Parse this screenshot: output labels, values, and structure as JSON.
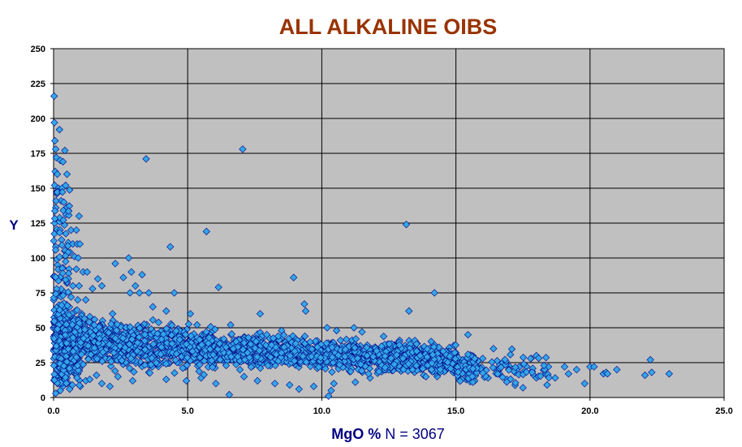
{
  "chart_data": {
    "type": "scatter",
    "title": "ALL ALKALINE  OIBS",
    "xlabel": "MgO %",
    "xlabel_suffix": " N = 3067",
    "ylabel": "Y",
    "xlim": [
      0,
      25
    ],
    "ylim": [
      0,
      250
    ],
    "xticks": [
      "0.0",
      "5.0",
      "10.0",
      "15.0",
      "20.0",
      "25.0"
    ],
    "yticks": [
      "0",
      "25",
      "50",
      "75",
      "100",
      "125",
      "150",
      "175",
      "200",
      "225",
      "250"
    ],
    "grid": true,
    "legend": "none",
    "colors": {
      "title": "#993300",
      "axis_label": "#000080",
      "plot_background": "#c0c0c0",
      "marker_fill": "#33a6e8",
      "marker_edge": "#000080"
    },
    "marker": "diamond",
    "points": [
      [
        0.02,
        216
      ],
      [
        0.03,
        197
      ],
      [
        0.05,
        184
      ],
      [
        0.08,
        178
      ],
      [
        0.22,
        192
      ],
      [
        0.42,
        177
      ],
      [
        0.1,
        172
      ],
      [
        0.25,
        170
      ],
      [
        0.35,
        169
      ],
      [
        0.06,
        162
      ],
      [
        0.14,
        160
      ],
      [
        0.5,
        160
      ],
      [
        0.04,
        152
      ],
      [
        0.18,
        150
      ],
      [
        0.32,
        150
      ],
      [
        0.45,
        152
      ],
      [
        0.12,
        146
      ],
      [
        0.28,
        141
      ],
      [
        0.38,
        140
      ],
      [
        0.08,
        136
      ],
      [
        0.55,
        134
      ],
      [
        0.95,
        130
      ],
      [
        0.04,
        125
      ],
      [
        0.22,
        126
      ],
      [
        0.15,
        120
      ],
      [
        0.65,
        120
      ],
      [
        0.85,
        120
      ],
      [
        0.3,
        113
      ],
      [
        0.55,
        111
      ],
      [
        0.72,
        110
      ],
      [
        0.88,
        110
      ],
      [
        0.98,
        110
      ],
      [
        0.08,
        108
      ],
      [
        0.42,
        105
      ],
      [
        0.62,
        104
      ],
      [
        0.78,
        101
      ],
      [
        0.92,
        100
      ],
      [
        0.15,
        95
      ],
      [
        0.35,
        93
      ],
      [
        0.58,
        92
      ],
      [
        0.85,
        92
      ],
      [
        1.1,
        90
      ],
      [
        1.25,
        90
      ],
      [
        1.65,
        85
      ],
      [
        0.25,
        85
      ],
      [
        0.5,
        82
      ],
      [
        0.72,
        80
      ],
      [
        0.95,
        80
      ],
      [
        1.45,
        78
      ],
      [
        1.8,
        80
      ],
      [
        0.12,
        75
      ],
      [
        0.38,
        74
      ],
      [
        0.65,
        72
      ],
      [
        0.9,
        70
      ],
      [
        1.2,
        70
      ],
      [
        0.2,
        66
      ],
      [
        0.48,
        64
      ],
      [
        0.82,
        62
      ],
      [
        1.05,
        60
      ],
      [
        1.35,
        58
      ],
      [
        0.3,
        56
      ],
      [
        0.6,
        55
      ],
      [
        0.85,
        54
      ],
      [
        1.15,
        52
      ],
      [
        1.5,
        50
      ],
      [
        3.45,
        171
      ],
      [
        7.05,
        178
      ],
      [
        5.7,
        119
      ],
      [
        4.35,
        108
      ],
      [
        2.8,
        100
      ],
      [
        2.3,
        96
      ],
      [
        3.3,
        88
      ],
      [
        2.9,
        90
      ],
      [
        2.6,
        86
      ],
      [
        3.05,
        80
      ],
      [
        3.55,
        75
      ],
      [
        3.2,
        75
      ],
      [
        2.85,
        75
      ],
      [
        4.5,
        75
      ],
      [
        6.15,
        79
      ],
      [
        8.95,
        86
      ],
      [
        9.35,
        67
      ],
      [
        9.4,
        62
      ],
      [
        13.15,
        124
      ],
      [
        13.25,
        62
      ],
      [
        14.2,
        75
      ],
      [
        2.2,
        60
      ],
      [
        3.7,
        65
      ],
      [
        4.2,
        62
      ],
      [
        5.1,
        60
      ],
      [
        5.35,
        52
      ],
      [
        6.6,
        52
      ],
      [
        7.7,
        60
      ],
      [
        8.5,
        48
      ],
      [
        10.2,
        50
      ],
      [
        10.55,
        48
      ],
      [
        11.2,
        50
      ],
      [
        11.5,
        47
      ],
      [
        15.45,
        45
      ],
      [
        16.4,
        35
      ],
      [
        12.9,
        41
      ],
      [
        17.8,
        28
      ],
      [
        18.0,
        30
      ],
      [
        18.45,
        22
      ],
      [
        19.05,
        22
      ],
      [
        19.5,
        20
      ],
      [
        20.0,
        22
      ],
      [
        20.15,
        22
      ],
      [
        20.5,
        17
      ],
      [
        20.6,
        18
      ],
      [
        20.65,
        17
      ],
      [
        22.25,
        27
      ],
      [
        22.3,
        18
      ],
      [
        22.05,
        16
      ],
      [
        22.95,
        17
      ],
      [
        19.8,
        10
      ],
      [
        18.4,
        9
      ],
      [
        17.5,
        7
      ],
      [
        16.9,
        13
      ],
      [
        16.2,
        14
      ],
      [
        15.7,
        12
      ],
      [
        14.9,
        18
      ],
      [
        14.3,
        15
      ],
      [
        13.8,
        16
      ],
      [
        12.95,
        19
      ],
      [
        12.4,
        20
      ],
      [
        11.8,
        14
      ],
      [
        11.25,
        11
      ],
      [
        10.45,
        10
      ],
      [
        10.35,
        5
      ],
      [
        10.25,
        1
      ],
      [
        9.7,
        8
      ],
      [
        9.15,
        6
      ],
      [
        8.8,
        9
      ],
      [
        8.25,
        10
      ],
      [
        7.6,
        12
      ],
      [
        7.1,
        15
      ],
      [
        6.55,
        2
      ],
      [
        6.05,
        10
      ],
      [
        5.5,
        14
      ],
      [
        4.95,
        12
      ],
      [
        4.2,
        13
      ],
      [
        3.55,
        18
      ],
      [
        2.95,
        12
      ],
      [
        2.4,
        15
      ],
      [
        1.8,
        10
      ],
      [
        1.2,
        12
      ],
      [
        0.7,
        9
      ],
      [
        0.25,
        5
      ],
      [
        0.08,
        3
      ],
      [
        0.5,
        14
      ],
      [
        0.9,
        17
      ],
      [
        1.35,
        13
      ],
      [
        2.1,
        8
      ],
      [
        0.15,
        10
      ],
      [
        0.35,
        8
      ],
      [
        0.05,
        14
      ],
      [
        0.6,
        6
      ],
      [
        1.0,
        8
      ],
      [
        1.6,
        16
      ],
      [
        17.2,
        18
      ],
      [
        18.7,
        14
      ],
      [
        16.5,
        20
      ],
      [
        15.1,
        21
      ],
      [
        17.9,
        16
      ],
      [
        19.2,
        17
      ],
      [
        21.0,
        20
      ],
      [
        16.0,
        28
      ],
      [
        15.8,
        26
      ],
      [
        16.7,
        22
      ],
      [
        14.6,
        26
      ],
      [
        13.4,
        24
      ],
      [
        12.2,
        23
      ]
    ]
  }
}
